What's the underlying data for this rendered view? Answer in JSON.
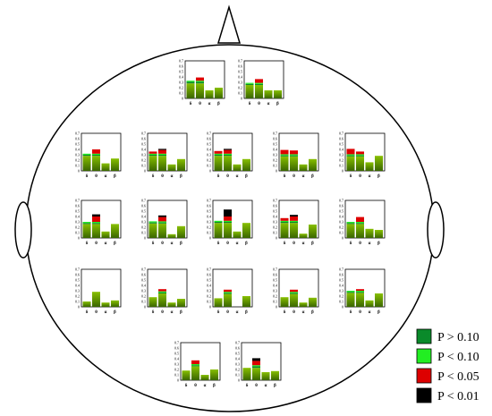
{
  "chart_data": {
    "type": "bar",
    "categories": [
      "δ",
      "θ",
      "α",
      "β"
    ],
    "ylim": [
      0,
      0.7
    ],
    "yticks": [
      "0",
      "0.1",
      "0.2",
      "0.3",
      "0.4",
      "0.5",
      "0.6",
      "0.7"
    ],
    "colors": {
      "base_top": "#88c000",
      "base_bottom": "#3a6600",
      "p_gt_010": "#0a8a2a",
      "p_lt_010": "#22ee22",
      "p_lt_005": "#dd0000",
      "p_lt_001": "#000000"
    },
    "legend": [
      {
        "key": "p_gt_010",
        "label": "P > 0.10",
        "color": "#0a8a2a"
      },
      {
        "key": "p_lt_010",
        "label": "P < 0.10",
        "color": "#22ee22"
      },
      {
        "key": "p_lt_005",
        "label": "P < 0.05",
        "color": "#dd0000"
      },
      {
        "key": "p_lt_001",
        "label": "P < 0.01",
        "color": "#000000"
      }
    ],
    "panels": [
      {
        "bars": [
          {
            "base": 0.28,
            "segs": [
              [
                "p_gt_010",
                0.03
              ],
              [
                "p_lt_010",
                0.02
              ]
            ]
          },
          {
            "base": 0.28,
            "segs": [
              [
                "p_gt_010",
                0.03
              ],
              [
                "p_lt_010",
                0.02
              ],
              [
                "p_lt_005",
                0.06
              ]
            ]
          },
          {
            "base": 0.15,
            "segs": []
          },
          {
            "base": 0.2,
            "segs": []
          }
        ]
      },
      {
        "bars": [
          {
            "base": 0.25,
            "segs": [
              [
                "p_gt_010",
                0.02
              ],
              [
                "p_lt_010",
                0.02
              ]
            ]
          },
          {
            "base": 0.25,
            "segs": [
              [
                "p_gt_010",
                0.02
              ],
              [
                "p_lt_010",
                0.02
              ],
              [
                "p_lt_005",
                0.07
              ]
            ]
          },
          {
            "base": 0.15,
            "segs": []
          },
          {
            "base": 0.15,
            "segs": []
          }
        ]
      },
      {
        "bars": [
          {
            "base": 0.28,
            "segs": [
              [
                "p_gt_010",
                0.02
              ],
              [
                "p_lt_010",
                0.02
              ]
            ]
          },
          {
            "base": 0.28,
            "segs": [
              [
                "p_gt_010",
                0.02
              ],
              [
                "p_lt_010",
                0.02
              ],
              [
                "p_lt_005",
                0.08
              ]
            ]
          },
          {
            "base": 0.14,
            "segs": []
          },
          {
            "base": 0.23,
            "segs": []
          }
        ]
      },
      {
        "bars": [
          {
            "base": 0.28,
            "segs": [
              [
                "p_gt_010",
                0.02
              ],
              [
                "p_lt_010",
                0.02
              ],
              [
                "p_lt_005",
                0.04
              ]
            ]
          },
          {
            "base": 0.28,
            "segs": [
              [
                "p_gt_010",
                0.02
              ],
              [
                "p_lt_010",
                0.02
              ],
              [
                "p_lt_005",
                0.07
              ],
              [
                "p_lt_001",
                0.02
              ]
            ]
          },
          {
            "base": 0.12,
            "segs": []
          },
          {
            "base": 0.22,
            "segs": []
          }
        ]
      },
      {
        "bars": [
          {
            "base": 0.28,
            "segs": [
              [
                "p_gt_010",
                0.02
              ],
              [
                "p_lt_010",
                0.02
              ],
              [
                "p_lt_005",
                0.05
              ]
            ]
          },
          {
            "base": 0.28,
            "segs": [
              [
                "p_gt_010",
                0.02
              ],
              [
                "p_lt_010",
                0.02
              ],
              [
                "p_lt_005",
                0.07
              ],
              [
                "p_lt_001",
                0.02
              ]
            ]
          },
          {
            "base": 0.12,
            "segs": []
          },
          {
            "base": 0.22,
            "segs": []
          }
        ]
      },
      {
        "bars": [
          {
            "base": 0.27,
            "segs": [
              [
                "p_gt_010",
                0.02
              ],
              [
                "p_lt_010",
                0.02
              ],
              [
                "p_lt_005",
                0.08
              ]
            ]
          },
          {
            "base": 0.27,
            "segs": [
              [
                "p_gt_010",
                0.02
              ],
              [
                "p_lt_010",
                0.02
              ],
              [
                "p_lt_005",
                0.07
              ]
            ]
          },
          {
            "base": 0.12,
            "segs": []
          },
          {
            "base": 0.22,
            "segs": []
          }
        ]
      },
      {
        "bars": [
          {
            "base": 0.27,
            "segs": [
              [
                "p_gt_010",
                0.02
              ],
              [
                "p_lt_010",
                0.02
              ],
              [
                "p_lt_005",
                0.1
              ]
            ]
          },
          {
            "base": 0.27,
            "segs": [
              [
                "p_gt_010",
                0.02
              ],
              [
                "p_lt_010",
                0.02
              ],
              [
                "p_lt_005",
                0.05
              ]
            ]
          },
          {
            "base": 0.16,
            "segs": []
          },
          {
            "base": 0.28,
            "segs": []
          }
        ]
      },
      {
        "bars": [
          {
            "base": 0.26,
            "segs": [
              [
                "p_gt_010",
                0.02
              ],
              [
                "p_lt_010",
                0.02
              ]
            ]
          },
          {
            "base": 0.26,
            "segs": [
              [
                "p_gt_010",
                0.02
              ],
              [
                "p_lt_010",
                0.02
              ],
              [
                "p_lt_005",
                0.1
              ],
              [
                "p_lt_001",
                0.04
              ]
            ]
          },
          {
            "base": 0.12,
            "segs": []
          },
          {
            "base": 0.26,
            "segs": []
          }
        ]
      },
      {
        "bars": [
          {
            "base": 0.27,
            "segs": [
              [
                "p_gt_010",
                0.02
              ],
              [
                "p_lt_010",
                0.02
              ]
            ]
          },
          {
            "base": 0.27,
            "segs": [
              [
                "p_gt_010",
                0.02
              ],
              [
                "p_lt_010",
                0.02
              ],
              [
                "p_lt_005",
                0.08
              ],
              [
                "p_lt_001",
                0.03
              ]
            ]
          },
          {
            "base": 0.07,
            "segs": []
          },
          {
            "base": 0.22,
            "segs": []
          }
        ]
      },
      {
        "bars": [
          {
            "base": 0.28,
            "segs": [
              [
                "p_gt_010",
                0.02
              ],
              [
                "p_lt_010",
                0.02
              ]
            ]
          },
          {
            "base": 0.28,
            "segs": [
              [
                "p_gt_010",
                0.02
              ],
              [
                "p_lt_010",
                0.02
              ],
              [
                "p_lt_005",
                0.08
              ],
              [
                "p_lt_001",
                0.13
              ]
            ]
          },
          {
            "base": 0.12,
            "segs": []
          },
          {
            "base": 0.28,
            "segs": []
          }
        ]
      },
      {
        "bars": [
          {
            "base": 0.28,
            "segs": [
              [
                "p_gt_010",
                0.02
              ],
              [
                "p_lt_010",
                0.02
              ],
              [
                "p_lt_005",
                0.05
              ]
            ]
          },
          {
            "base": 0.28,
            "segs": [
              [
                "p_gt_010",
                0.02
              ],
              [
                "p_lt_010",
                0.02
              ],
              [
                "p_lt_005",
                0.08
              ],
              [
                "p_lt_001",
                0.03
              ]
            ]
          },
          {
            "base": 0.08,
            "segs": []
          },
          {
            "base": 0.25,
            "segs": []
          }
        ]
      },
      {
        "bars": [
          {
            "base": 0.26,
            "segs": [
              [
                "p_gt_010",
                0.02
              ],
              [
                "p_lt_010",
                0.02
              ]
            ]
          },
          {
            "base": 0.26,
            "segs": [
              [
                "p_gt_010",
                0.02
              ],
              [
                "p_lt_010",
                0.02
              ],
              [
                "p_lt_005",
                0.09
              ]
            ]
          },
          {
            "base": 0.17,
            "segs": []
          },
          {
            "base": 0.15,
            "segs": []
          }
        ]
      },
      {
        "bars": [
          {
            "base": 0.1,
            "segs": []
          },
          {
            "base": 0.28,
            "segs": []
          },
          {
            "base": 0.08,
            "segs": []
          },
          {
            "base": 0.12,
            "segs": []
          }
        ]
      },
      {
        "bars": [
          {
            "base": 0.18,
            "segs": []
          },
          {
            "base": 0.25,
            "segs": [
              [
                "p_gt_010",
                0.02
              ],
              [
                "p_lt_010",
                0.02
              ],
              [
                "p_lt_005",
                0.04
              ]
            ]
          },
          {
            "base": 0.08,
            "segs": []
          },
          {
            "base": 0.15,
            "segs": []
          }
        ]
      },
      {
        "bars": [
          {
            "base": 0.16,
            "segs": []
          },
          {
            "base": 0.24,
            "segs": [
              [
                "p_gt_010",
                0.02
              ],
              [
                "p_lt_010",
                0.02
              ],
              [
                "p_lt_005",
                0.04
              ]
            ]
          },
          {
            "base": 0.0,
            "segs": []
          },
          {
            "base": 0.2,
            "segs": []
          }
        ]
      },
      {
        "bars": [
          {
            "base": 0.18,
            "segs": []
          },
          {
            "base": 0.24,
            "segs": [
              [
                "p_gt_010",
                0.02
              ],
              [
                "p_lt_010",
                0.02
              ],
              [
                "p_lt_005",
                0.04
              ]
            ]
          },
          {
            "base": 0.08,
            "segs": []
          },
          {
            "base": 0.17,
            "segs": []
          }
        ]
      },
      {
        "bars": [
          {
            "base": 0.26,
            "segs": [
              [
                "p_gt_010",
                0.02
              ],
              [
                "p_lt_010",
                0.02
              ]
            ]
          },
          {
            "base": 0.26,
            "segs": [
              [
                "p_gt_010",
                0.02
              ],
              [
                "p_lt_010",
                0.02
              ],
              [
                "p_lt_005",
                0.03
              ]
            ]
          },
          {
            "base": 0.12,
            "segs": []
          },
          {
            "base": 0.25,
            "segs": []
          }
        ]
      },
      {
        "bars": [
          {
            "base": 0.18,
            "segs": []
          },
          {
            "base": 0.26,
            "segs": [
              [
                "p_gt_010",
                0.02
              ],
              [
                "p_lt_010",
                0.02
              ],
              [
                "p_lt_005",
                0.07
              ]
            ]
          },
          {
            "base": 0.1,
            "segs": []
          },
          {
            "base": 0.2,
            "segs": []
          }
        ]
      },
      {
        "bars": [
          {
            "base": 0.23,
            "segs": []
          },
          {
            "base": 0.23,
            "segs": [
              [
                "p_gt_010",
                0.03
              ],
              [
                "p_lt_010",
                0.02
              ],
              [
                "p_lt_005",
                0.08
              ],
              [
                "p_lt_001",
                0.05
              ]
            ]
          },
          {
            "base": 0.15,
            "segs": []
          },
          {
            "base": 0.17,
            "segs": []
          }
        ]
      }
    ]
  }
}
